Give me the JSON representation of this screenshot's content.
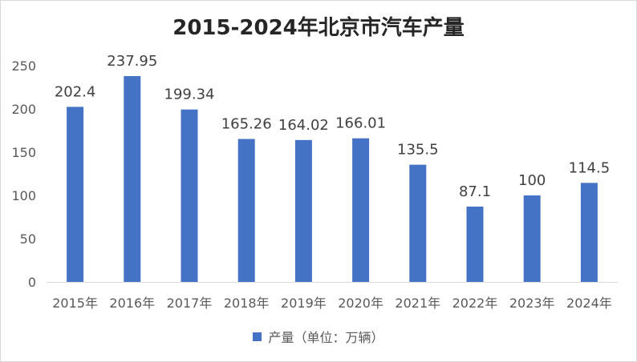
{
  "chart_data": {
    "type": "bar",
    "title": "2015-2024年北京市汽车产量",
    "categories": [
      "2015年",
      "2016年",
      "2017年",
      "2018年",
      "2019年",
      "2020年",
      "2021年",
      "2022年",
      "2023年",
      "2024年"
    ],
    "series": [
      {
        "name": "产量（单位：万辆）",
        "values": [
          202.4,
          237.95,
          199.34,
          165.26,
          164.02,
          166.01,
          135.5,
          87.1,
          100,
          114.5
        ],
        "labels": [
          "202.4",
          "237.95",
          "199.34",
          "165.26",
          "164.02",
          "166.01",
          "135.5",
          "87.1",
          "100",
          "114.5"
        ],
        "color": "#4472C4"
      }
    ],
    "ylim": [
      0,
      250
    ],
    "yticks": [
      "0",
      "50",
      "100",
      "150",
      "200",
      "250"
    ],
    "xlabel": "",
    "ylabel": "",
    "grid": false,
    "legend_position": "bottom"
  }
}
